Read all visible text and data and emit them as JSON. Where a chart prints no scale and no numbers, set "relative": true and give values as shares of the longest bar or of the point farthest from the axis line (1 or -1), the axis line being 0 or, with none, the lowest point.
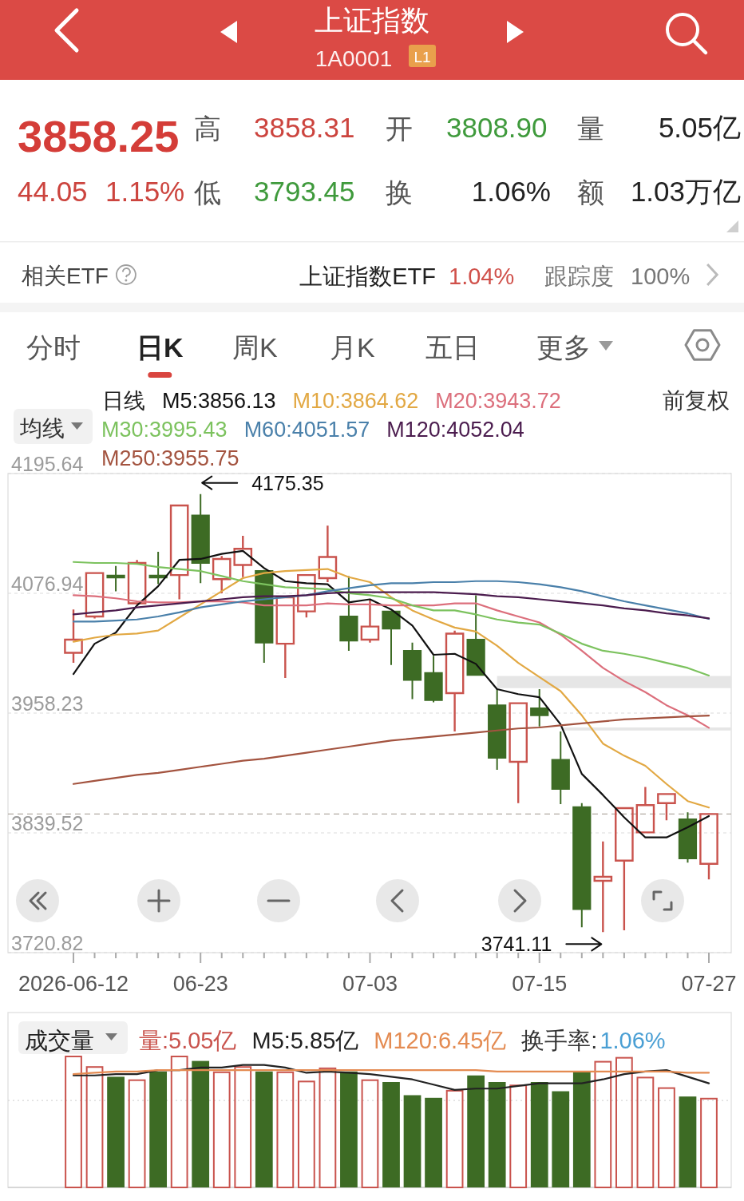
{
  "chart_data": [
    {
      "type": "other",
      "title": "上证指数",
      "subtitle": "1A0001",
      "annotations": [
        "L1",
        "3858.25",
        "高",
        "3858.31",
        "开",
        "3808.90",
        "量",
        "5.05亿",
        "44.05",
        "1.15%",
        "低",
        "3793.45",
        "换",
        "1.06%",
        "额",
        "1.03万亿",
        "相关ETF",
        "上证指数ETF",
        "1.04%",
        "跟踪度",
        "100%",
        "分时",
        "日K",
        "周K",
        "月K",
        "五日",
        "更多"
      ]
    },
    {
      "type": "candlestick",
      "legend_title": "日线",
      "legend": "top",
      "grid": "y",
      "categories": [
        "2026-06-12",
        null,
        null,
        null,
        null,
        null,
        "06-23",
        null,
        null,
        null,
        null,
        null,
        null,
        null,
        "07-03",
        null,
        null,
        null,
        null,
        null,
        null,
        null,
        "07-15",
        null,
        null,
        null,
        null,
        null,
        null,
        null,
        "07-27"
      ],
      "ohlc": [
        [
          4018,
          4061,
          4008,
          4031
        ],
        [
          4054,
          4098,
          4052,
          4097
        ],
        [
          4094,
          4104,
          4079,
          4093
        ],
        [
          4067,
          4110,
          4066,
          4107
        ],
        [
          4094,
          4118,
          4086,
          4093
        ],
        [
          4095,
          4165,
          4071,
          4164
        ],
        [
          4154,
          4175.35,
          4087,
          4107
        ],
        [
          4091,
          4114,
          4077,
          4111
        ],
        [
          4105,
          4134,
          4093,
          4121
        ],
        [
          4099,
          4100,
          4008,
          4028
        ],
        [
          4027,
          4074,
          3993,
          4073
        ],
        [
          4059,
          4096,
          4053,
          4095
        ],
        [
          4092,
          4144,
          4088,
          4113
        ],
        [
          4054,
          4094,
          4020,
          4030
        ],
        [
          4031,
          4071,
          4028,
          4044
        ],
        [
          4059,
          4060,
          4006,
          4042
        ],
        [
          4020,
          4028,
          3972,
          3991
        ],
        [
          3998,
          4015,
          3969,
          3971
        ],
        [
          3978,
          4040,
          3940,
          4037
        ],
        [
          4031,
          4075,
          3996,
          3996
        ],
        [
          3966,
          3982,
          3902,
          3914
        ],
        [
          3910,
          3969,
          3869,
          3968
        ],
        [
          3963,
          3982,
          3945,
          3956
        ],
        [
          3912,
          3940,
          3868,
          3883
        ],
        [
          3865,
          3869,
          3746,
          3764
        ],
        [
          3792,
          3831,
          3741.11,
          3796
        ],
        [
          3812,
          3865,
          3743,
          3864
        ],
        [
          3840,
          3885,
          3840,
          3867
        ],
        [
          3869,
          3878,
          3852,
          3878
        ],
        [
          3853,
          3860,
          3810,
          3814.2
        ],
        [
          3808.9,
          3858.31,
          3793.45,
          3858.25
        ]
      ],
      "colors": [
        "#c9534d",
        "#c9534d",
        "#3d6b24",
        "#c9534d",
        "#3d6b24",
        "#c9534d",
        "#3d6b24",
        "#c9534d",
        "#c9534d",
        "#3d6b24",
        "#c9534d",
        "#c9534d",
        "#c9534d",
        "#3d6b24",
        "#c9534d",
        "#3d6b24",
        "#3d6b24",
        "#3d6b24",
        "#c9534d",
        "#3d6b24",
        "#3d6b24",
        "#c9534d",
        "#3d6b24",
        "#3d6b24",
        "#3d6b24",
        "#c9534d",
        "#c9534d",
        "#c9534d",
        "#c9534d",
        "#3d6b24",
        "#c9534d"
      ],
      "series": [
        {
          "name": "M5:3856.13",
          "type": "line",
          "color": "#111111",
          "values": [
            3997,
            4027,
            4038,
            4065,
            4084,
            4110,
            4111,
            4116,
            4119,
            4102,
            4089,
            4087,
            4086,
            4068,
            4071,
            4061,
            4045,
            4016,
            4017,
            4007,
            3982,
            3977,
            3974,
            3947,
            3898,
            3877,
            3855,
            3835,
            3835,
            3845,
            3856.13
          ]
        },
        {
          "name": "M10:3864.62",
          "type": "line",
          "color": "#e2a843",
          "values": [
            4029,
            4033,
            4036,
            4037,
            4040,
            4053,
            4066,
            4079,
            4092,
            4097,
            4099,
            4100,
            4101,
            4093,
            4088,
            4073,
            4060,
            4051,
            4043,
            4039,
            4025,
            4008,
            3994,
            3980,
            3956,
            3928,
            3916,
            3906,
            3888,
            3871,
            3864.62
          ]
        },
        {
          "name": "M20:3943.72",
          "type": "line",
          "color": "#dc6f7c",
          "values": [
            4075,
            4074,
            4072,
            4069,
            4068,
            4068,
            4069,
            4069,
            4068,
            4065,
            4065,
            4065,
            4067,
            4066,
            4066,
            4065,
            4065,
            4065,
            4067,
            4067,
            4060,
            4054,
            4048,
            4036,
            4020,
            4003,
            3990,
            3979,
            3966,
            3956,
            3943.72
          ]
        },
        {
          "name": "M30:3995.43",
          "type": "line",
          "color": "#7cc25e",
          "values": [
            4108,
            4107,
            4107,
            4106,
            4103,
            4101,
            4099,
            4094,
            4089,
            4086,
            4083,
            4082,
            4081,
            4077,
            4075,
            4072,
            4065,
            4060,
            4060,
            4056,
            4051,
            4048,
            4046,
            4037,
            4027,
            4020,
            4017,
            4013,
            4008,
            4003,
            3995.43
          ]
        },
        {
          "name": "M60:4051.57",
          "type": "line",
          "color": "#4a80aa",
          "values": [
            4049,
            4049,
            4050,
            4051,
            4054,
            4058,
            4063,
            4066,
            4069,
            4071,
            4073,
            4075,
            4079,
            4082,
            4085,
            4087,
            4087,
            4088,
            4088,
            4089,
            4089,
            4088,
            4086,
            4083,
            4079,
            4074,
            4069,
            4065,
            4061,
            4057,
            4051.57
          ]
        },
        {
          "name": "M120:4052.04",
          "type": "line",
          "color": "#4b1c4e",
          "values": [
            4056,
            4058,
            4060,
            4063,
            4065,
            4067,
            4069,
            4071,
            4073,
            4074,
            4074,
            4075,
            4077,
            4078,
            4078,
            4078,
            4078,
            4078,
            4077,
            4076,
            4074,
            4073,
            4071,
            4069,
            4067,
            4065,
            4062,
            4060,
            4057,
            4055,
            4052.04
          ]
        },
        {
          "name": "M250:3955.75",
          "type": "line",
          "color": "#a3533f",
          "values": [
            3888,
            3891,
            3894,
            3897,
            3899,
            3902,
            3905,
            3908,
            3911,
            3913,
            3916,
            3919,
            3922,
            3925,
            3928,
            3931,
            3933,
            3935,
            3937,
            3939,
            3941,
            3943,
            3944,
            3946,
            3948,
            3950,
            3952,
            3953,
            3954,
            3955,
            3955.75
          ]
        }
      ],
      "ylim": [
        3720.82,
        4195.64
      ],
      "yticks": [
        4195.64,
        4076.94,
        3958.23,
        3839.52,
        3720.82
      ],
      "ref_lines": [
        {
          "axis": "y",
          "value": 3858.25,
          "color": "#b3aaa2",
          "line_style": "dashed"
        }
      ],
      "bands": [
        {
          "axis": "y",
          "from": 3983,
          "to": 3995,
          "color": "#e6e6e6"
        },
        {
          "axis": "y",
          "from": 3941,
          "to": 3944,
          "color": "#e6e6e6"
        }
      ],
      "annotations": [
        {
          "text": "4175.35",
          "x": "06-23",
          "y": 4175.35
        },
        "3741.11",
        "前复权",
        "均线"
      ]
    },
    {
      "type": "bar",
      "relative": true,
      "legend_title": "成交量",
      "legend": "top",
      "categories": [
        null,
        null,
        null,
        null,
        null,
        null,
        null,
        null,
        null,
        null,
        null,
        null,
        null,
        null,
        null,
        null,
        null,
        null,
        null,
        null,
        null,
        null,
        null,
        null,
        null,
        null,
        null,
        null,
        null,
        null,
        null
      ],
      "ref_lines": [
        {
          "axis": "y",
          "value": 0.66,
          "color": "#d6d6d6",
          "line_style": "dotted"
        }
      ],
      "series": [
        {
          "name": "量:5.05亿",
          "color": "#c9534d",
          "colors": [
            "#c9534d",
            "#c9534d",
            "#3d6b24",
            "#c9534d",
            "#3d6b24",
            "#c9534d",
            "#3d6b24",
            "#c9534d",
            "#c9534d",
            "#3d6b24",
            "#c9534d",
            "#c9534d",
            "#c9534d",
            "#3d6b24",
            "#c9534d",
            "#3d6b24",
            "#3d6b24",
            "#3d6b24",
            "#c9534d",
            "#3d6b24",
            "#3d6b24",
            "#c9534d",
            "#3d6b24",
            "#3d6b24",
            "#3d6b24",
            "#c9534d",
            "#c9534d",
            "#c9534d",
            "#c9534d",
            "#3d6b24",
            "#c9534d"
          ],
          "values": [
            1,
            0.92,
            0.84,
            0.82,
            0.88,
            1,
            0.96,
            0.88,
            0.92,
            0.88,
            0.88,
            0.81,
            0.91,
            0.88,
            0.82,
            0.8,
            0.7,
            0.68,
            0.74,
            0.85,
            0.8,
            0.78,
            0.8,
            0.73,
            0.88,
            0.96,
            0.99,
            0.84,
            0.76,
            0.69,
            0.68
          ]
        },
        {
          "name": "M5:5.85亿",
          "type": "line",
          "color": "#222222",
          "values": [
            0.85,
            0.85,
            0.86,
            0.86,
            0.89,
            0.89,
            0.91,
            0.91,
            0.93,
            0.93,
            0.91,
            0.87,
            0.88,
            0.87,
            0.86,
            0.84,
            0.82,
            0.78,
            0.74,
            0.75,
            0.75,
            0.77,
            0.79,
            0.79,
            0.79,
            0.82,
            0.86,
            0.88,
            0.89,
            0.84,
            0.79
          ]
        },
        {
          "name": "M120:6.45亿",
          "type": "line",
          "color": "#e48b52",
          "values": [
            0.86,
            0.87,
            0.88,
            0.88,
            0.89,
            0.89,
            0.89,
            0.89,
            0.89,
            0.89,
            0.89,
            0.89,
            0.89,
            0.89,
            0.89,
            0.89,
            0.89,
            0.89,
            0.89,
            0.89,
            0.88,
            0.88,
            0.88,
            0.88,
            0.88,
            0.88,
            0.88,
            0.88,
            0.88,
            0.87,
            0.87
          ]
        }
      ],
      "annotations": [
        "换手率:",
        "1.06%"
      ]
    }
  ]
}
